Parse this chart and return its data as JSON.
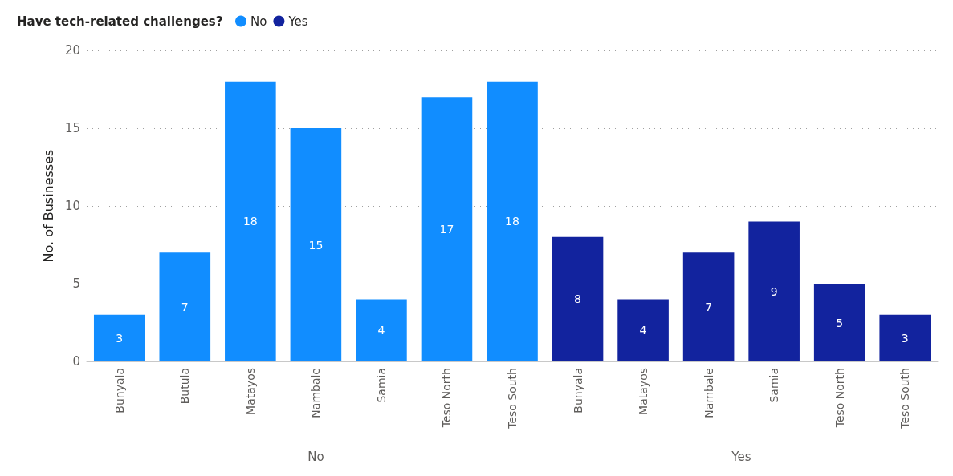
{
  "chart_data": {
    "type": "bar",
    "legend_title": "Have tech-related challenges?",
    "ylabel": "No. of Businesses",
    "categories": [
      "Bunyala",
      "Butula",
      "Matayos",
      "Nambale",
      "Samia",
      "Teso North",
      "Teso South",
      "Bunyala",
      "Matayos",
      "Nambale",
      "Samia",
      "Teso North",
      "Teso South"
    ],
    "series": [
      {
        "name": "No",
        "color": "#118dff",
        "values": [
          3,
          7,
          18,
          15,
          4,
          17,
          18,
          null,
          null,
          null,
          null,
          null,
          null
        ]
      },
      {
        "name": "Yes",
        "color": "#12239e",
        "values": [
          null,
          null,
          null,
          null,
          null,
          null,
          null,
          8,
          4,
          7,
          9,
          5,
          3
        ]
      }
    ],
    "annotations": [
      "No",
      "Yes"
    ],
    "ylim": [
      0,
      20
    ],
    "yticks": [
      0,
      5,
      10,
      15,
      20
    ],
    "grid": "y",
    "legend": "top left",
    "data_labels": true
  }
}
